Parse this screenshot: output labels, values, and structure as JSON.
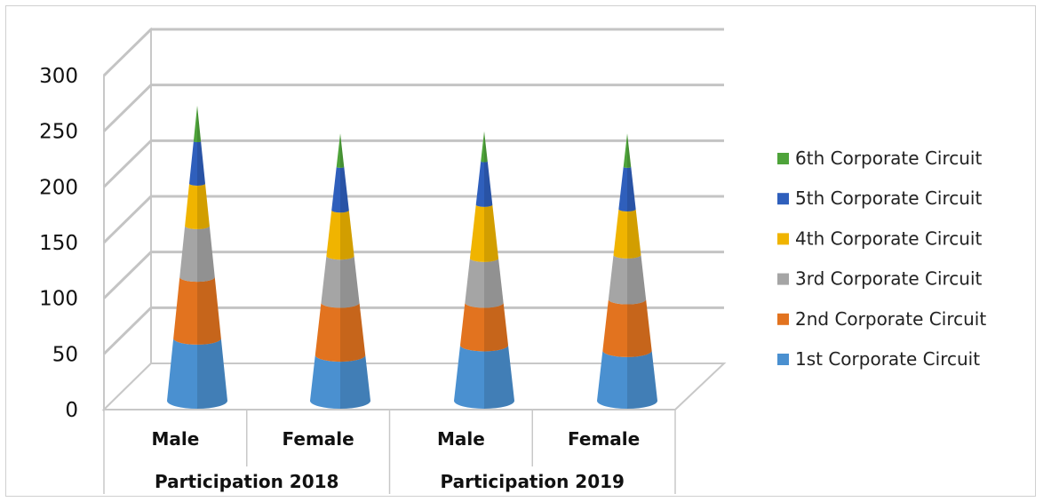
{
  "chart_data": {
    "type": "bar",
    "shape": "3d-cone-stacked",
    "title": "",
    "xlabel": "",
    "ylabel": "",
    "ylim": [
      0,
      300
    ],
    "yticks": [
      "0",
      "50",
      "100",
      "150",
      "200",
      "250",
      "300"
    ],
    "categories": [
      "Male",
      "Female",
      "Male",
      "Female"
    ],
    "groups": [
      {
        "label": "Participation 2018",
        "span": [
          0,
          1
        ]
      },
      {
        "label": "Participation 2019",
        "span": [
          2,
          3
        ]
      }
    ],
    "series": [
      {
        "name": "1st Corporate Circuit",
        "color": "#4a90d0",
        "values": [
          56,
          41,
          50,
          45
        ]
      },
      {
        "name": "2nd Corporate Circuit",
        "color": "#e2731f",
        "values": [
          55,
          47,
          38,
          46
        ]
      },
      {
        "name": "3rd Corporate Circuit",
        "color": "#a5a5a5",
        "values": [
          46,
          42,
          40,
          40
        ]
      },
      {
        "name": "4th Corporate Circuit",
        "color": "#f0b400",
        "values": [
          38,
          41,
          48,
          41
        ]
      },
      {
        "name": "5th Corporate Circuit",
        "color": "#2f5fbc",
        "values": [
          38,
          39,
          39,
          38
        ]
      },
      {
        "name": "6th Corporate Circuit",
        "color": "#4ea33a",
        "values": [
          32,
          30,
          27,
          30
        ]
      }
    ],
    "legend": "right",
    "grid": true
  }
}
